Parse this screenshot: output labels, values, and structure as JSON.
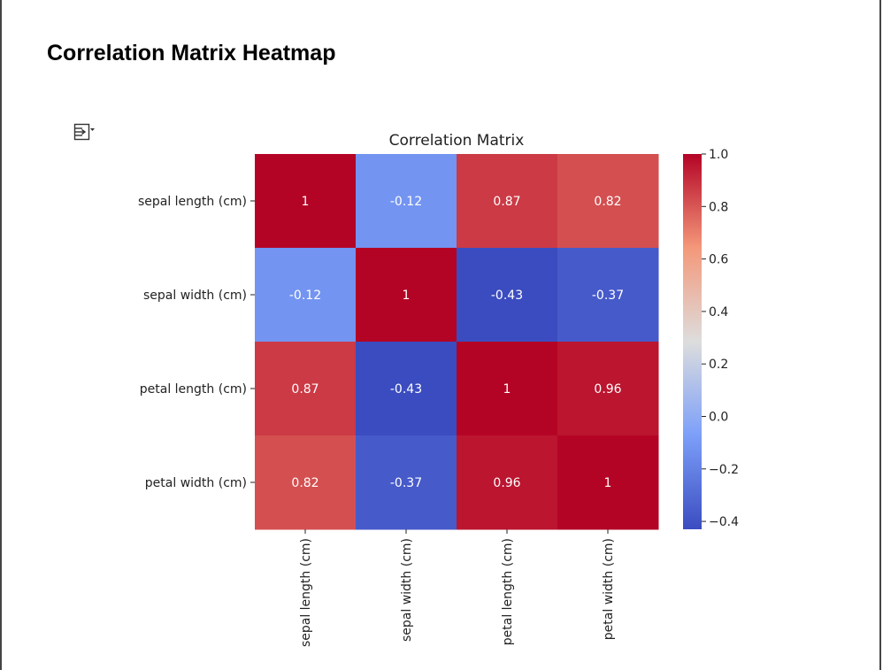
{
  "page": {
    "title": "Correlation Matrix Heatmap"
  },
  "icons": {
    "output_toggle": "output-toggle-icon"
  },
  "chart_data": {
    "type": "heatmap",
    "title": "Correlation Matrix",
    "row_labels": [
      "sepal length (cm)",
      "sepal width (cm)",
      "petal length (cm)",
      "petal width (cm)"
    ],
    "col_labels": [
      "sepal length (cm)",
      "sepal width (cm)",
      "petal length (cm)",
      "petal width (cm)"
    ],
    "values": [
      [
        1,
        -0.12,
        0.87,
        0.82
      ],
      [
        -0.12,
        1,
        -0.43,
        -0.37
      ],
      [
        0.87,
        -0.43,
        1,
        0.96
      ],
      [
        0.82,
        -0.37,
        0.96,
        1
      ]
    ],
    "annotations": [
      [
        "1",
        "-0.12",
        "0.87",
        "0.82"
      ],
      [
        "-0.12",
        "1",
        "-0.43",
        "-0.37"
      ],
      [
        "0.87",
        "-0.43",
        "1",
        "0.96"
      ],
      [
        "0.82",
        "-0.37",
        "0.96",
        "1"
      ]
    ],
    "colormap": "coolwarm",
    "colorbar": {
      "range": [
        -0.43,
        1
      ],
      "ticks": [
        1.0,
        0.8,
        0.6,
        0.4,
        0.2,
        0.0,
        -0.2,
        -0.4
      ],
      "tick_labels": [
        "1.0",
        "0.8",
        "0.6",
        "0.4",
        "0.2",
        "0.0",
        "−0.2",
        "−0.4"
      ]
    }
  }
}
